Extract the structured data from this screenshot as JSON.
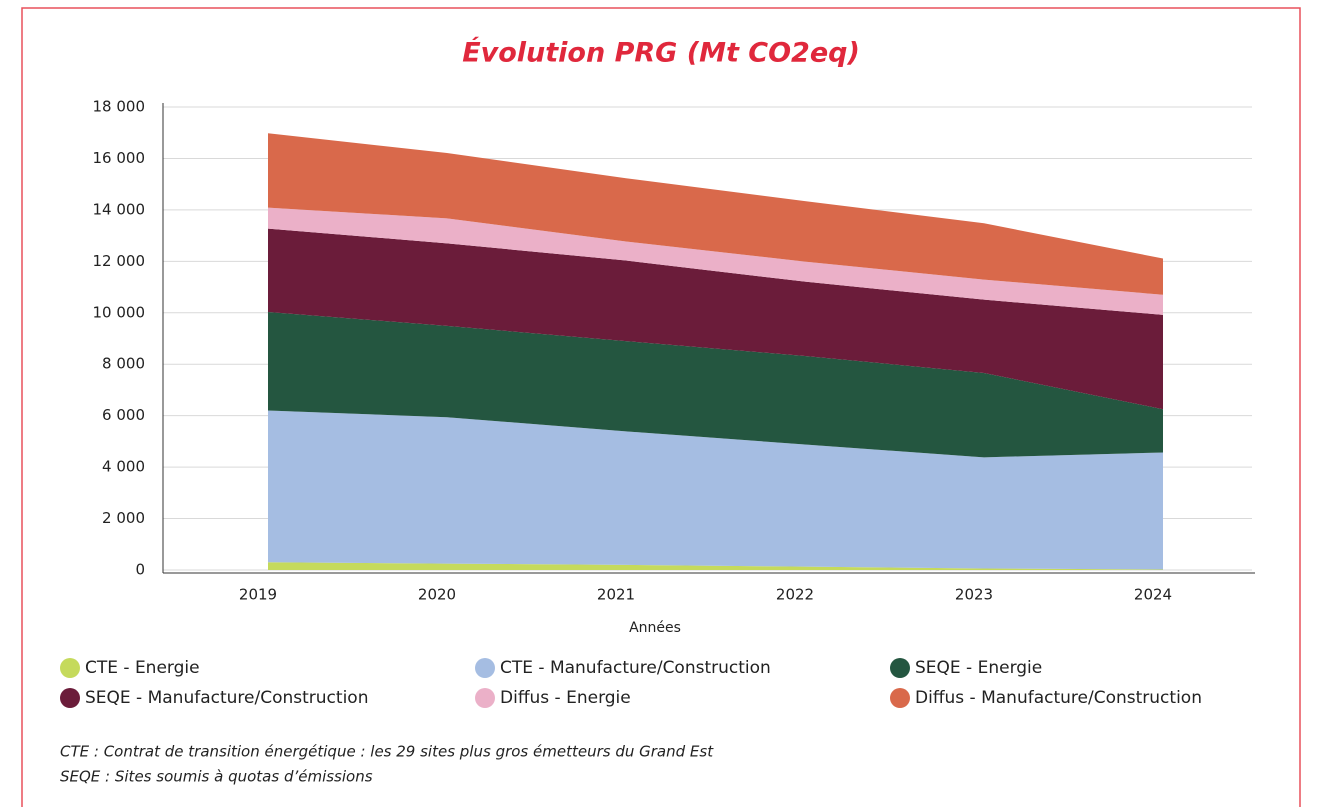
{
  "chart_data": {
    "type": "stacked_area",
    "title": "Évolution PRG (Mt CO2eq)",
    "x_label": "Années",
    "categories": [
      "2019",
      "2020",
      "2021",
      "2022",
      "2023",
      "2024"
    ],
    "series": [
      {
        "name": "CTE - Energie",
        "color": "#c5da5c",
        "values": [
          300,
          250,
          200,
          130,
          60,
          20
        ]
      },
      {
        "name": "CTE - Manufacture/Construction",
        "color": "#a5bde2",
        "values": [
          5900,
          5690,
          5190,
          4750,
          4320,
          4550
        ]
      },
      {
        "name": "SEQE - Energie",
        "color": "#245640",
        "values": [
          3830,
          3550,
          3510,
          3440,
          3280,
          1680
        ]
      },
      {
        "name": "SEQE - Manufacture/Construction",
        "color": "#6b1c3a",
        "values": [
          3240,
          3210,
          3130,
          2890,
          2850,
          3670
        ]
      },
      {
        "name": "Diffus - Energie",
        "color": "#ebb0c8",
        "values": [
          820,
          970,
          740,
          780,
          780,
          780
        ]
      },
      {
        "name": "Diffus - Manufacture/Construction",
        "color": "#d9694b",
        "values": [
          2890,
          2540,
          2460,
          2350,
          2190,
          1410
        ]
      }
    ],
    "ylim": [
      0,
      18000
    ],
    "yticks": [
      0,
      {
        "value": 2000,
        "label": "2 000"
      },
      {
        "value": 4000,
        "label": "4 000"
      },
      {
        "value": 6000,
        "label": "6 000"
      },
      {
        "value": 8000,
        "label": "8 000"
      },
      {
        "value": 10000,
        "label": "10 000"
      },
      {
        "value": 12000,
        "label": "12 000"
      },
      {
        "value": 14000,
        "label": "14 000"
      },
      {
        "value": 16000,
        "label": "16 000"
      },
      {
        "value": 18000,
        "label": "18 000"
      }
    ],
    "grid": true,
    "legend_position": "bottom",
    "notes": [
      "CTE : Contrat de transition énergétique : les 29 sites plus gros émetteurs du Grand Est",
      "SEQE : Sites soumis à quotas d’émissions"
    ]
  }
}
